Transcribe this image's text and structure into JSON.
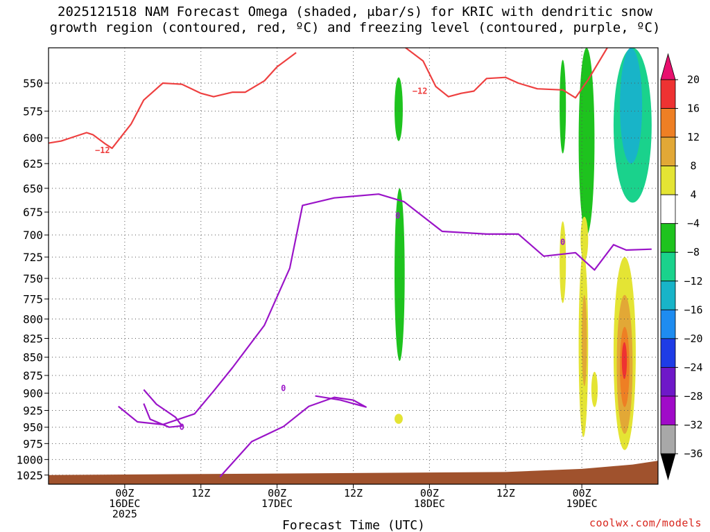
{
  "title": {
    "line1": "2025121518 NAM Forecast Omega (shaded, μbar/s) for KRIC with dendritic snow",
    "line2": "growth region (contoured, red, ºC) and freezing level (contoured, purple, ºC)"
  },
  "credit": "coolwx.com/models",
  "chart_data": {
    "type": "heatmap",
    "title": "2025121518 NAM Forecast Omega (shaded, μbar/s) for KRIC with dendritic snow growth region (contoured, red, ºC) and freezing level (contoured, purple, ºC)",
    "xlabel": "Forecast Time (UTC)",
    "ylabel": "",
    "y_scale": "log",
    "xlim_hours": [
      -12,
      84
    ],
    "ylim": [
      520,
      1040
    ],
    "y_ticks": [
      550,
      575,
      600,
      625,
      650,
      675,
      700,
      725,
      750,
      775,
      800,
      825,
      850,
      875,
      900,
      925,
      950,
      975,
      1000,
      1025
    ],
    "x_ticks": [
      {
        "hour": 0,
        "lines": [
          "00Z",
          "16DEC",
          "2025"
        ]
      },
      {
        "hour": 12,
        "lines": [
          "12Z"
        ]
      },
      {
        "hour": 24,
        "lines": [
          "00Z",
          "17DEC"
        ]
      },
      {
        "hour": 36,
        "lines": [
          "12Z"
        ]
      },
      {
        "hour": 48,
        "lines": [
          "00Z",
          "18DEC"
        ]
      },
      {
        "hour": 60,
        "lines": [
          "12Z"
        ]
      },
      {
        "hour": 72,
        "lines": [
          "00Z",
          "19DEC"
        ]
      }
    ],
    "grid": true,
    "colorbar": {
      "levels": [
        "20",
        "16",
        "12",
        "8",
        "4",
        "−4",
        "−8",
        "−12",
        "−16",
        "−20",
        "−24",
        "−28",
        "−32",
        "−36"
      ],
      "colors": [
        "#e8106e",
        "#ee3232",
        "#ee7f24",
        "#e2a836",
        "#e4e434",
        "#ffffff",
        "#1ec31e",
        "#1ad28c",
        "#18b4c8",
        "#1e8cf0",
        "#1e3ce6",
        "#6e18c8",
        "#a00ac8",
        "#a8a8a8",
        "#000000"
      ]
    },
    "contour_labels": [
      {
        "series": "dendritic",
        "text": "−12"
      },
      {
        "series": "dendritic",
        "text": "−12"
      },
      {
        "series": "freezing",
        "text": "0"
      },
      {
        "series": "freezing",
        "text": "0"
      },
      {
        "series": "freezing",
        "text": "0"
      },
      {
        "series": "freezing",
        "text": "0"
      }
    ],
    "series": [
      {
        "name": "dendritic snow growth region (−12ºC)",
        "color": "#ee4040",
        "points": [
          [
            -12,
            605
          ],
          [
            -10,
            603
          ],
          [
            -8,
            599
          ],
          [
            -6,
            595
          ],
          [
            -5,
            597
          ],
          [
            -3,
            606
          ],
          [
            -2,
            610
          ],
          [
            1,
            587
          ],
          [
            3,
            565
          ],
          [
            6,
            550
          ],
          [
            9,
            551
          ],
          [
            12,
            559
          ],
          [
            14,
            562
          ],
          [
            17,
            558
          ],
          [
            19,
            558
          ],
          [
            22,
            548
          ],
          [
            24,
            536
          ],
          [
            27,
            524
          ]
        ]
      },
      {
        "name": "dendritic snow growth region (−12ºC) right",
        "color": "#ee4040",
        "points": [
          [
            44,
            519
          ],
          [
            47,
            531
          ],
          [
            49,
            553
          ],
          [
            51,
            562
          ],
          [
            53,
            559
          ],
          [
            55,
            557
          ],
          [
            57,
            546
          ],
          [
            60,
            545
          ],
          [
            62,
            550
          ],
          [
            65,
            555
          ],
          [
            69,
            556
          ],
          [
            71,
            563
          ],
          [
            73,
            547
          ],
          [
            76,
            520
          ]
        ]
      },
      {
        "name": "freezing level (0ºC)",
        "color": "#9a14c8",
        "points": [
          [
            -1,
            919
          ],
          [
            2,
            942
          ],
          [
            6,
            946
          ],
          [
            11,
            930
          ],
          [
            14,
            897
          ],
          [
            17,
            864
          ],
          [
            22,
            808
          ],
          [
            26,
            738
          ],
          [
            28,
            668
          ],
          [
            33,
            660
          ],
          [
            40,
            656
          ],
          [
            44,
            664
          ],
          [
            50,
            696
          ],
          [
            57,
            699
          ],
          [
            62,
            699
          ],
          [
            66,
            724
          ],
          [
            71,
            720
          ],
          [
            74,
            740
          ],
          [
            77,
            711
          ],
          [
            79,
            717
          ],
          [
            83,
            716
          ]
        ]
      },
      {
        "name": "freezing level (0ºC) closed",
        "color": "#9a14c8",
        "points": [
          [
            3,
            895
          ],
          [
            5,
            916
          ],
          [
            8,
            935
          ],
          [
            9,
            948
          ],
          [
            7,
            950
          ],
          [
            4,
            938
          ],
          [
            3,
            915
          ]
        ]
      },
      {
        "name": "freezing level (0ºC) lower",
        "color": "#9a14c8",
        "points": [
          [
            15,
            1028
          ],
          [
            20,
            972
          ],
          [
            25,
            949
          ],
          [
            29,
            919
          ],
          [
            33,
            906
          ],
          [
            36,
            910
          ],
          [
            38,
            920
          ],
          [
            34,
            910
          ],
          [
            30,
            904
          ]
        ]
      }
    ],
    "omega_regions": [
      {
        "band": "-8 to -4",
        "x_range": [
          42.5,
          43.8
        ],
        "p_range": [
          545,
          603
        ]
      },
      {
        "band": "-8 to -4",
        "x_range": [
          42.5,
          44.1
        ],
        "p_range": [
          650,
          855
        ]
      },
      {
        "band": "-8 to -4",
        "x_range": [
          68.5,
          69.5
        ],
        "p_range": [
          530,
          615
        ]
      },
      {
        "band": "-8 to -4",
        "x_range": [
          71.5,
          74.0
        ],
        "p_range": [
          520,
          700
        ]
      },
      {
        "band": "-12 to -8",
        "x_range": [
          77.0,
          83.0
        ],
        "p_range": [
          520,
          665
        ]
      },
      {
        "band": "-16 to -12",
        "x_range": [
          78.0,
          81.5
        ],
        "p_range": [
          520,
          625
        ]
      },
      {
        "band": "4 to 8",
        "x_range": [
          68.5,
          69.5
        ],
        "p_range": [
          685,
          780
        ]
      },
      {
        "band": "4 to 8",
        "x_range": [
          71.8,
          73.0
        ],
        "p_range": [
          680,
          730
        ]
      },
      {
        "band": "4 to 8",
        "x_range": [
          71.5,
          73.0
        ],
        "p_range": [
          720,
          965
        ]
      },
      {
        "band": "4 to 8",
        "x_range": [
          77.0,
          80.5
        ],
        "p_range": [
          725,
          985
        ]
      },
      {
        "band": "4 to 8",
        "x_range": [
          73.5,
          74.5
        ],
        "p_range": [
          870,
          920
        ]
      },
      {
        "band": "4 to 8",
        "x_range": [
          42.5,
          43.8
        ],
        "p_range": [
          930,
          945
        ]
      },
      {
        "band": "8 to 12",
        "x_range": [
          72.0,
          72.8
        ],
        "p_range": [
          770,
          890
        ]
      },
      {
        "band": "8 to 12",
        "x_range": [
          77.5,
          80.0
        ],
        "p_range": [
          770,
          960
        ]
      },
      {
        "band": "12 to 16",
        "x_range": [
          78.0,
          79.5
        ],
        "p_range": [
          810,
          920
        ]
      },
      {
        "band": "16 to 20",
        "x_range": [
          78.3,
          79.1
        ],
        "p_range": [
          830,
          880
        ]
      }
    ],
    "terrain": {
      "label": "surface",
      "color": "#a0522d",
      "points": [
        [
          -12,
          1025
        ],
        [
          60,
          1020
        ],
        [
          72,
          1015
        ],
        [
          80,
          1008
        ],
        [
          84,
          1002
        ]
      ]
    }
  }
}
